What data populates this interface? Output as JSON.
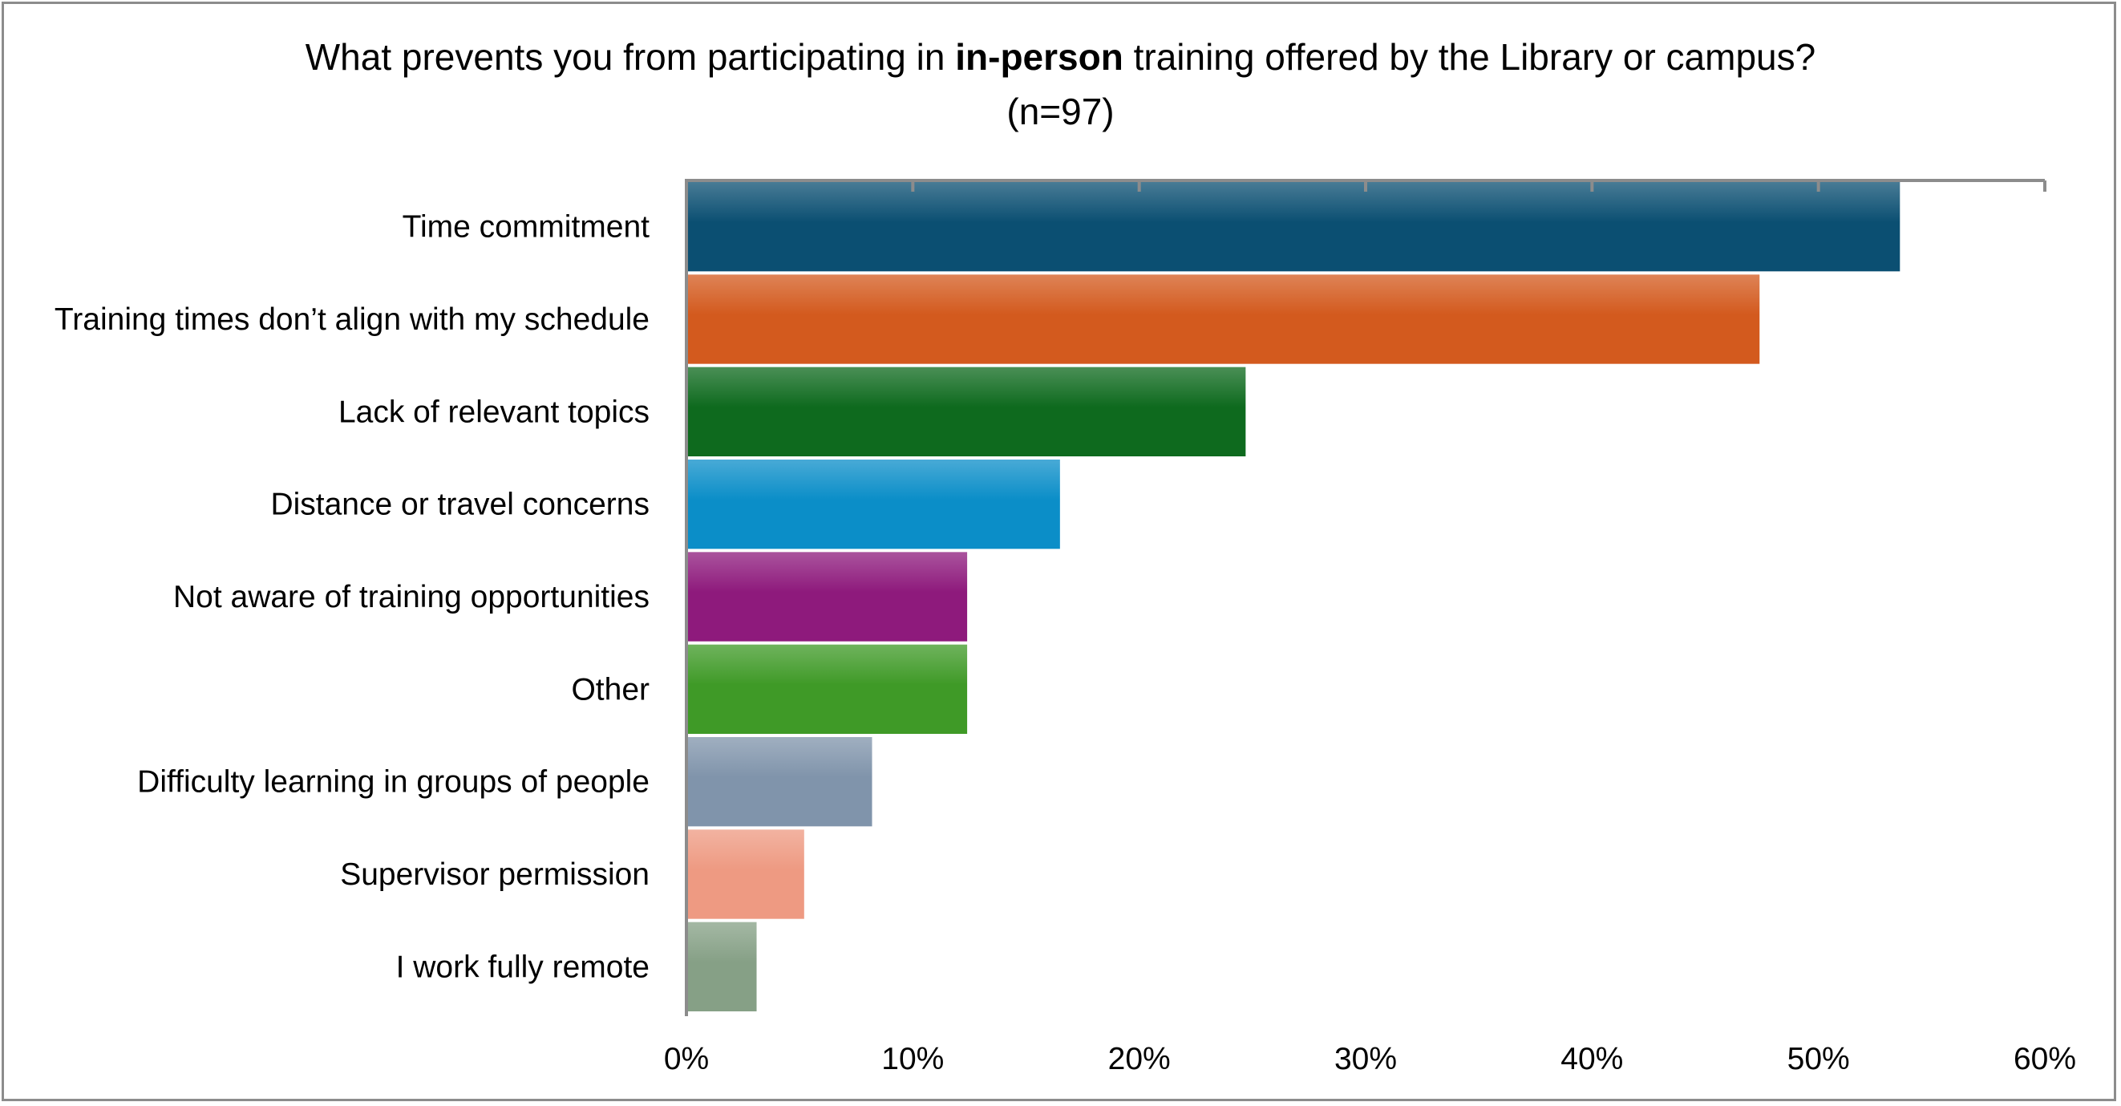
{
  "chart_data": {
    "type": "bar",
    "orientation": "horizontal",
    "title": {
      "before": "What prevents you from participating in ",
      "bold": "in-person",
      "after": " training offered by the Library or campus?"
    },
    "subtitle": "(n=97)",
    "categories": [
      "Time commitment",
      "Training times don’t align with my schedule",
      "Lack of relevant topics",
      "Distance or travel concerns",
      "Not aware of training opportunities",
      "Other",
      "Difficulty learning in groups of people",
      "Supervisor permission",
      "I work fully remote"
    ],
    "values": [
      53.6,
      47.4,
      24.7,
      16.5,
      12.4,
      12.4,
      8.2,
      5.2,
      3.1
    ],
    "colors": [
      "#0b4f72",
      "#d35a1e",
      "#0e6a1e",
      "#0b8ec8",
      "#8e1a7c",
      "#3f9a27",
      "#8094ab",
      "#ee9a82",
      "#86a086"
    ],
    "xlim": [
      0,
      60
    ],
    "xticks": [
      0,
      10,
      20,
      30,
      40,
      50,
      60
    ],
    "tick_labels": [
      "0%",
      "10%",
      "20%",
      "30%",
      "40%",
      "50%",
      "60%"
    ],
    "grid": false,
    "legend": "none"
  }
}
